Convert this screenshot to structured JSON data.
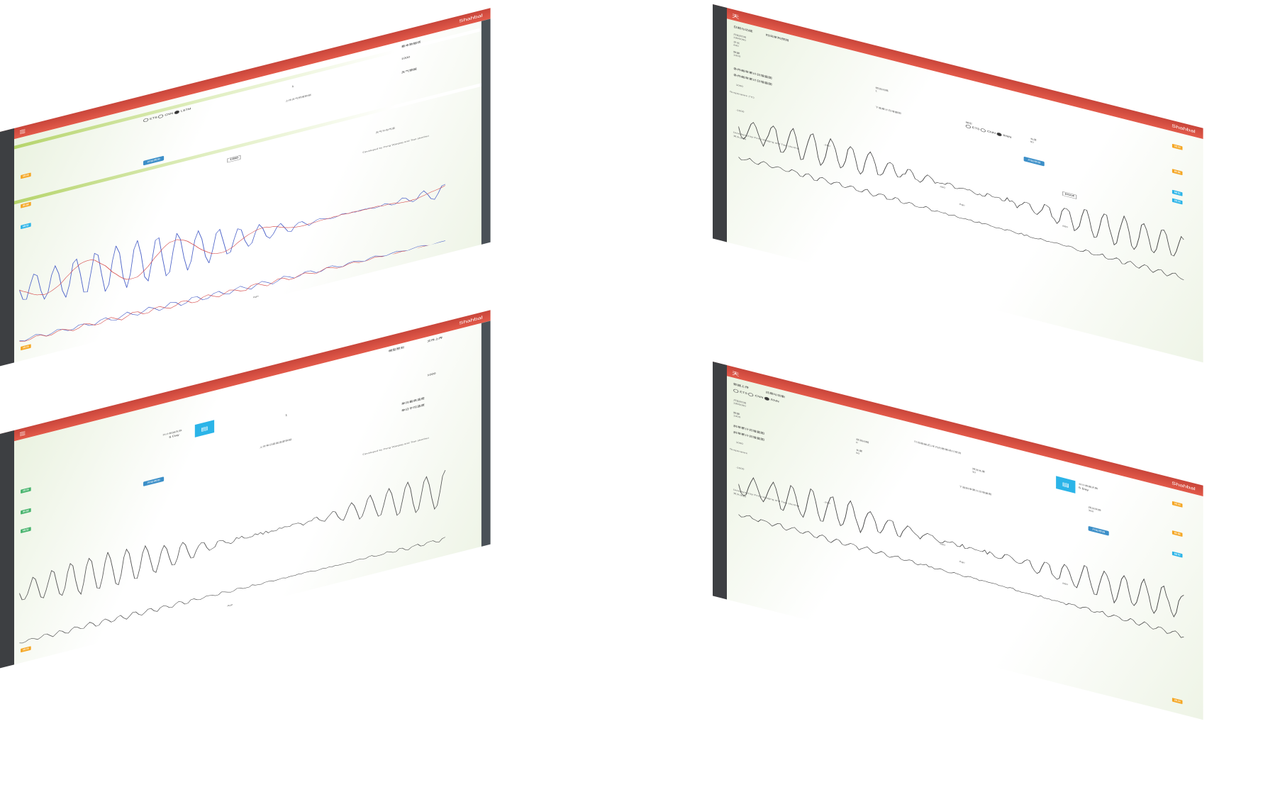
{
  "app": {
    "name": "Shahbal",
    "close": "天"
  },
  "panels": [
    {
      "id": "top-left",
      "section1": "基本数据项",
      "section2": "天气预报",
      "input1": "1000",
      "input2": "1",
      "radio_labels": [
        "ETS",
        "CNN",
        "LSTM"
      ],
      "btn": "开始预测",
      "tooltip": "1990",
      "upload": "上传天气预报数据",
      "footer": "Developed by Peng Wanjing and Tian shenhui",
      "xlabel": "Age",
      "chart_title": "天气平均气温",
      "tags": [
        "预测",
        "数据",
        "模型",
        "预测"
      ]
    },
    {
      "id": "top-right",
      "tab1": "日期与功能",
      "tab2": "时间序列预测",
      "f_start": "开始时间",
      "f_start_val": "1990000",
      "f_step": "步长",
      "f_step_val": "400",
      "f_count": "数量",
      "f_count_val": "1000",
      "f_interval": "预测间隔",
      "f_interval_val": "1",
      "f_model": "模型",
      "radio_labels": [
        "ETS",
        "CNN",
        "RNN"
      ],
      "f_len": "长度",
      "f_len_val": "50",
      "section1": "条件概率累计日增量图",
      "section2": "条件概率累计日增量图",
      "upload": "下载累计日增量图",
      "btn": "开始预测",
      "tooltip": "inso4",
      "ylabel": "Temperature (°C)",
      "ytick_top": "1000",
      "ytick_bottom": "-1000",
      "xtick1": "-200",
      "xtick2": "400",
      "xtick3": "800",
      "xlabel": "Age",
      "footer": "Developed by Peng Wanjing and Tian shenhui",
      "footer2": "天大出品",
      "chart_title": "条件概率累计日增量图",
      "tags": [
        "预测",
        "数据",
        "模型",
        "预测"
      ]
    },
    {
      "id": "bottom-left",
      "tab1": "文件上传",
      "tab2": "模型预测",
      "section1": "单日最高温度",
      "section2": "单日平均温度",
      "card_text": "5 Day",
      "card_sub": "共计数据天数",
      "input1": "1000",
      "input2": "1",
      "btn": "开始预测",
      "upload": "上传单日最高温度数据",
      "footer": "Developed by Peng Wanjing and Tian shenhui",
      "xlabel": "Age",
      "tags": [
        "预测",
        "数据",
        "模型",
        "预测"
      ]
    },
    {
      "id": "bottom-right",
      "tab1": "数据上传",
      "tab2": "日期与功能",
      "f_start": "开始时间",
      "f_start_val": "1990000",
      "radio_labels": [
        "ETS",
        "CNN",
        "RNN"
      ],
      "checkbox": "只加载最近1年内的数据进行预测",
      "f_count": "数量",
      "f_count_val": "1000",
      "f_interval": "预测间隔",
      "f_interval_val": "0",
      "f_len": "长度",
      "f_len_val": "50",
      "f_pred": "预测长度",
      "f_pred_val": "30",
      "f_days": "预测天数",
      "f_days_val": "360",
      "card_sub": "共计数据天数",
      "card_text": "5 Day",
      "section1": "斜率累计日增量图",
      "section2": "斜率累计日增量图",
      "upload": "下载斜率累计日增量图",
      "btn": "开始预测",
      "ylabel": "Temperature",
      "ytick_top": "1000",
      "ytick_bottom": "-1000",
      "xtick1": "-200",
      "xtick2": "400",
      "xtick3": "800",
      "xlabel": "Age",
      "footer": "Developed by Peng Wanjing and Tian shenhui",
      "footer2": "天大出品",
      "tags": [
        "预测",
        "数据",
        "模型",
        "预测"
      ]
    }
  ]
}
